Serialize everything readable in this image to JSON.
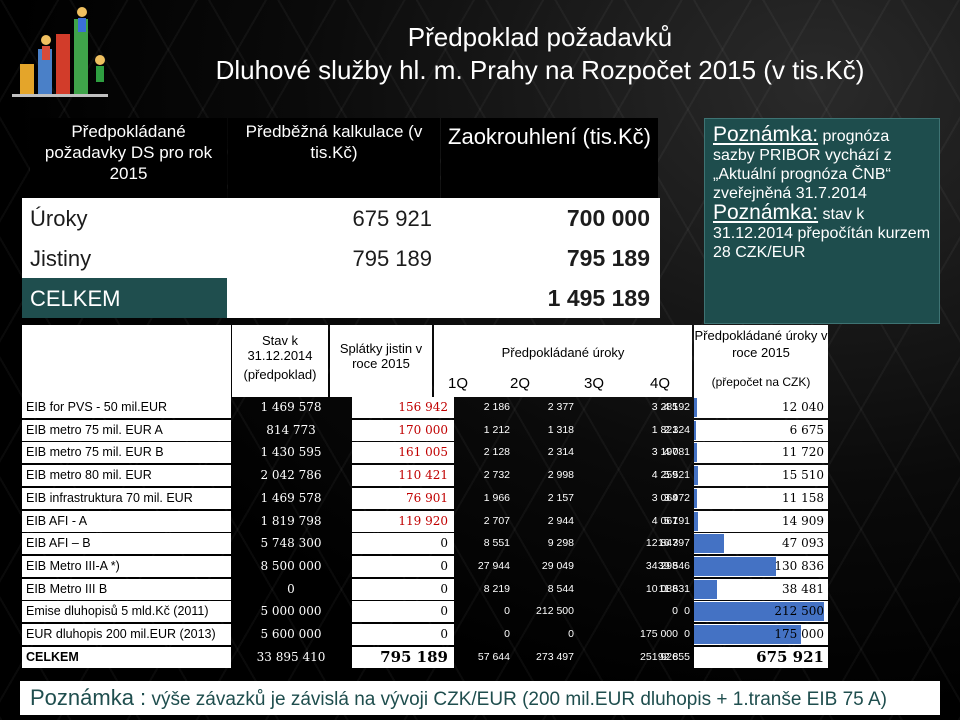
{
  "title_line1": "Předpoklad požadavků",
  "title_line2": "Dluhové služby hl. m. Prahy  na Rozpočet 2015  (v tis.Kč)",
  "summary": {
    "header_col1": "Předpokládané požadavky DS pro rok 2015",
    "header_col2": "Předběžná kalkulace (v tis.Kč)",
    "header_col3": "Zaokrouhlení (tis.Kč)",
    "rows": [
      {
        "label": "Úroky",
        "calc": "675 921",
        "rounded": "700 000"
      },
      {
        "label": "Jistiny",
        "calc": "795 189",
        "rounded": "795 189"
      }
    ],
    "total_label": "CELKEM",
    "total_rounded": "1 495 189"
  },
  "note_box": {
    "title1": "Poznámka:",
    "text1": " prognóza sazby PRIBOR vychází z „Aktuální prognóza ČNB“ zveřejněná 31.7.2014",
    "title2": "Poznámka:",
    "text2": " stav k 31.12.2014 přepočítán kurzem 28 CZK/EUR"
  },
  "table": {
    "h_stav": "Stav k 31.12.2014",
    "h_stav_sub": "(předpoklad)",
    "h_splatky": "Splátky jistin v roce 2015",
    "h_uroky": "Předpokládané úroky",
    "quarters": [
      "1Q",
      "2Q",
      "3Q",
      "4Q"
    ],
    "h_total": "Předpokládané úroky v roce 2015",
    "h_total_sub": "(přepočet na CZK)",
    "rows": [
      {
        "name": "EIB for PVS - 50 mil.EUR",
        "stav": "1 469 578",
        "spl": "156 942",
        "q": [
          "2 186",
          "2 377",
          "3 285",
          "4 192"
        ],
        "tot": "12 040",
        "bar": 0.023
      },
      {
        "name": "EIB metro 75 mil. EUR A",
        "stav": "814 773",
        "spl": "170 000",
        "q": [
          "1 212",
          "1 318",
          "1 821",
          "2 324"
        ],
        "tot": "6 675",
        "bar": 0.013
      },
      {
        "name": "EIB metro 75 mil. EUR B",
        "stav": "1 430 595",
        "spl": "161 005",
        "q": [
          "2 128",
          "2 314",
          "3 197",
          "4 081"
        ],
        "tot": "11 720",
        "bar": 0.023
      },
      {
        "name": "EIB metro 80 mil. EUR",
        "stav": "2 042 786",
        "spl": "110 421",
        "q": [
          "2 732",
          "2 998",
          "4 259",
          "5 521"
        ],
        "tot": "15 510",
        "bar": 0.03
      },
      {
        "name": "EIB infrastruktura 70 mil. EUR",
        "stav": "1 469 578",
        "spl": "76 901",
        "q": [
          "1 966",
          "2 157",
          "3 064",
          "3 972"
        ],
        "tot": "11 158",
        "bar": 0.022
      },
      {
        "name": "EIB AFI - A",
        "stav": "1 819 798",
        "spl": "119 920",
        "q": [
          "2 707",
          "2 944",
          "4 067",
          "5 191"
        ],
        "tot": "14 909",
        "bar": 0.029
      },
      {
        "name": "EIB AFI – B",
        "stav": "5 748 300",
        "spl": "0",
        "q": [
          "8 551",
          "9 298",
          "12 847",
          "16 397"
        ],
        "tot": "47 093",
        "bar": 0.232
      },
      {
        "name": "EIB Metro III-A  *)",
        "stav": "8 500 000",
        "spl": "0",
        "q": [
          "27 944",
          "29 049",
          "34 298",
          "39 546"
        ],
        "tot": "130 836",
        "bar": 0.63
      },
      {
        "name": "EIB Metro III  B",
        "stav": "0",
        "spl": "0",
        "q": [
          "8 219",
          "8 544",
          "10 088",
          "11 631"
        ],
        "tot": "38 481",
        "bar": 0.18
      },
      {
        "name": "Emise dluhopisů 5 mld.Kč (2011)",
        "stav": "5 000 000",
        "spl": "0",
        "q": [
          "0",
          "212 500",
          "0",
          "0"
        ],
        "tot": "212 500",
        "bar": 1.0
      },
      {
        "name": "EUR dluhopis 200 mil.EUR (2013)",
        "stav": "5 600 000",
        "spl": "0",
        "q": [
          "0",
          "0",
          "175 000",
          "0"
        ],
        "tot": "175 000",
        "bar": 0.82
      }
    ],
    "total": {
      "name": "CELKEM",
      "stav": "33 895 410",
      "spl": "795 189",
      "q": [
        "57 644",
        "273 497",
        "251 926",
        "92 855"
      ],
      "tot": "675 921"
    }
  },
  "bottom_note": {
    "title": "Poznámka :",
    "text": " výše závazků je závislá na vývoji CZK/EUR (200 mil.EUR dluhopis + 1.tranše  EIB 75 A)"
  }
}
